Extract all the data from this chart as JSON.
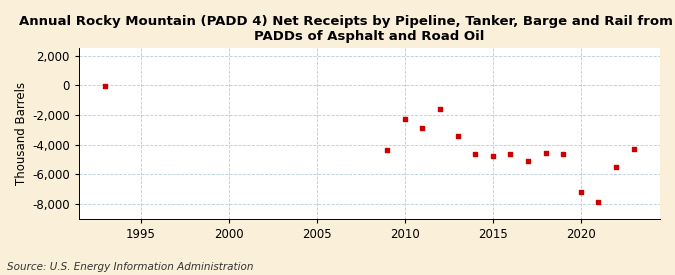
{
  "title": "Annual Rocky Mountain (PADD 4) Net Receipts by Pipeline, Tanker, Barge and Rail from Other\nPADDs of Asphalt and Road Oil",
  "ylabel": "Thousand Barrels",
  "source": "Source: U.S. Energy Information Administration",
  "background_color": "#faefd9",
  "plot_bg_color": "#ffffff",
  "marker_color": "#cc0000",
  "years": [
    1993,
    2009,
    2010,
    2011,
    2012,
    2013,
    2014,
    2015,
    2016,
    2017,
    2018,
    2019,
    2020,
    2021,
    2022,
    2023
  ],
  "values": [
    -20,
    -4350,
    -2250,
    -2900,
    -1600,
    -3400,
    -4600,
    -4750,
    -4600,
    -5100,
    -4550,
    -4600,
    -7200,
    -7900,
    -5500,
    -4300
  ],
  "xlim": [
    1991.5,
    2024.5
  ],
  "ylim": [
    -9000,
    2500
  ],
  "yticks": [
    2000,
    0,
    -2000,
    -4000,
    -6000,
    -8000
  ],
  "xticks": [
    1995,
    2000,
    2005,
    2010,
    2015,
    2020
  ],
  "title_fontsize": 9.5,
  "axis_fontsize": 8.5,
  "source_fontsize": 7.5
}
